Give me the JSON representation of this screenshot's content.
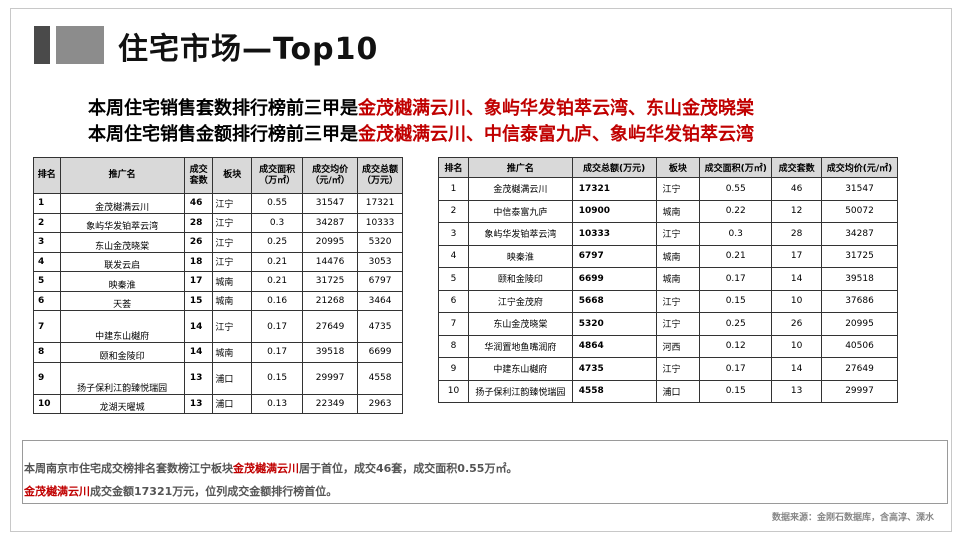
{
  "title": "住宅市场—Top10",
  "headline1": {
    "prefix": "本周住宅销售套数排行榜前三甲是",
    "highlight": "金茂樾满云川、象屿华发铂萃云湾、东山金茂晓棠"
  },
  "headline2": {
    "prefix": "本周住宅销售金额排行榜前三甲是",
    "highlight": "金茂樾满云川、中信泰富九庐、象屿华发铂萃云湾"
  },
  "table_left": {
    "headers": [
      "排名",
      "推广名",
      "成交套数",
      "板块",
      "成交面积（万㎡）",
      "成交均价（元/㎡）",
      "成交总额（万元）"
    ],
    "rows": [
      {
        "rank": "1",
        "name": "金茂樾满云川",
        "units": "46",
        "area": "江宁",
        "size": "0.55",
        "price": "31547",
        "amount": "17321"
      },
      {
        "rank": "2",
        "name": "象屿华发铂萃云湾",
        "units": "28",
        "area": "江宁",
        "size": "0.3",
        "price": "34287",
        "amount": "10333"
      },
      {
        "rank": "3",
        "name": "东山金茂晓棠",
        "units": "26",
        "area": "江宁",
        "size": "0.25",
        "price": "20995",
        "amount": "5320"
      },
      {
        "rank": "4",
        "name": "联发云启",
        "units": "18",
        "area": "江宁",
        "size": "0.21",
        "price": "14476",
        "amount": "3053"
      },
      {
        "rank": "5",
        "name": "映秦淮",
        "units": "17",
        "area": "城南",
        "size": "0.21",
        "price": "31725",
        "amount": "6797"
      },
      {
        "rank": "6",
        "name": "天荟",
        "units": "15",
        "area": "城南",
        "size": "0.16",
        "price": "21268",
        "amount": "3464"
      },
      {
        "rank": "7",
        "name": "中建东山樾府",
        "units": "14",
        "area": "江宁",
        "size": "0.17",
        "price": "27649",
        "amount": "4735"
      },
      {
        "rank": "8",
        "name": "颐和金陵印",
        "units": "14",
        "area": "城南",
        "size": "0.17",
        "price": "39518",
        "amount": "6699"
      },
      {
        "rank": "9",
        "name": "扬子保利江韵臻悦瑞园",
        "units": "13",
        "area": "浦口",
        "size": "0.15",
        "price": "29997",
        "amount": "4558"
      },
      {
        "rank": "10",
        "name": "龙湖天曜城",
        "units": "13",
        "area": "浦口",
        "size": "0.13",
        "price": "22349",
        "amount": "2963"
      }
    ]
  },
  "table_right": {
    "headers": [
      "排名",
      "推广名",
      "成交总额(万元)",
      "板块",
      "成交面积(万㎡)",
      "成交套数",
      "成交均价(元/㎡)"
    ],
    "rows": [
      {
        "rank": "1",
        "name": "金茂樾满云川",
        "amount": "17321",
        "area": "江宁",
        "size": "0.55",
        "units": "46",
        "price": "31547"
      },
      {
        "rank": "2",
        "name": "中信泰富九庐",
        "amount": "10900",
        "area": "城南",
        "size": "0.22",
        "units": "12",
        "price": "50072"
      },
      {
        "rank": "3",
        "name": "象屿华发铂萃云湾",
        "amount": "10333",
        "area": "江宁",
        "size": "0.3",
        "units": "28",
        "price": "34287"
      },
      {
        "rank": "4",
        "name": "映秦淮",
        "amount": "6797",
        "area": "城南",
        "size": "0.21",
        "units": "17",
        "price": "31725"
      },
      {
        "rank": "5",
        "name": "颐和金陵印",
        "amount": "6699",
        "area": "城南",
        "size": "0.17",
        "units": "14",
        "price": "39518"
      },
      {
        "rank": "6",
        "name": "江宁金茂府",
        "amount": "5668",
        "area": "江宁",
        "size": "0.15",
        "units": "10",
        "price": "37686"
      },
      {
        "rank": "7",
        "name": "东山金茂晓棠",
        "amount": "5320",
        "area": "江宁",
        "size": "0.25",
        "units": "26",
        "price": "20995"
      },
      {
        "rank": "8",
        "name": "华润置地鱼嘴润府",
        "amount": "4864",
        "area": "河西",
        "size": "0.12",
        "units": "10",
        "price": "40506"
      },
      {
        "rank": "9",
        "name": "中建东山樾府",
        "amount": "4735",
        "area": "江宁",
        "size": "0.17",
        "units": "14",
        "price": "27649"
      },
      {
        "rank": "10",
        "name": "扬子保利江韵臻悦瑞园",
        "amount": "4558",
        "area": "浦口",
        "size": "0.15",
        "units": "13",
        "price": "29997"
      }
    ]
  },
  "note1": {
    "prefix": "本周南京市住宅成交榜排名套数榜江宁板块",
    "highlight": "金茂樾满云川",
    "suffix": "居于首位，成交46套，成交面积0.55万㎡。"
  },
  "note2": {
    "highlight": "金茂樾满云川",
    "suffix": "成交金额17321万元，位列成交金额排行榜首位。"
  },
  "source": "数据来源：金刚石数据库，含高淳、溧水",
  "colors": {
    "highlight": "#c00000",
    "header_bg": "#d9d9d9",
    "title_block_dark": "#4a4a4a",
    "title_block_gray": "#8c8c8c"
  }
}
